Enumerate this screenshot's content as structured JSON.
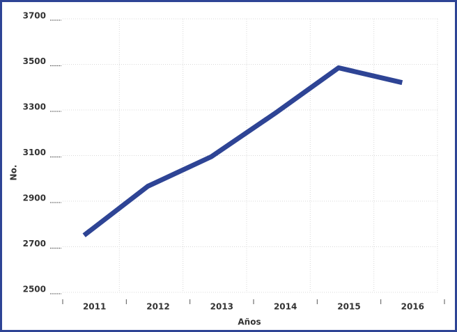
{
  "chart_data": {
    "type": "line",
    "x_label": "Años",
    "y_label": "No.",
    "categories": [
      "2011",
      "2012",
      "2013",
      "2014",
      "2015",
      "2016"
    ],
    "series": [
      {
        "name": "No.",
        "color": "#2e4495",
        "values": [
          2750,
          2965,
          3095,
          3285,
          3485,
          3420
        ]
      }
    ],
    "ylim": [
      2500,
      3700
    ],
    "yticks": [
      2500,
      2700,
      2900,
      3100,
      3300,
      3500,
      3700
    ],
    "grid": true
  }
}
